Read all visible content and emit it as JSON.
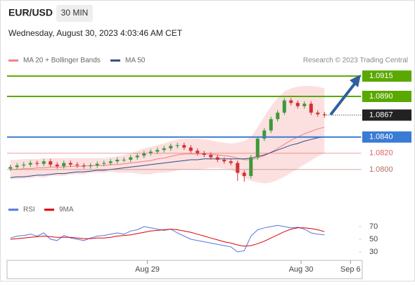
{
  "header": {
    "symbol": "EUR/USD",
    "timeframe": "30 MIN",
    "datetime": "Wednesday, August 30, 2023 4:03:46 AM CET"
  },
  "chart_data": [
    {
      "type": "candlestick",
      "source": "Research © 2023 Trading Central",
      "xlim": [
        -0.5,
        52.5
      ],
      "ylim": [
        1.0773,
        1.0929
      ],
      "up_color": "#3a9a3a",
      "down_color": "#d03030",
      "open": [
        1.0801,
        1.0803,
        1.0805,
        1.0806,
        1.0808,
        1.0807,
        1.081,
        1.0806,
        1.0804,
        1.0808,
        1.0806,
        1.0805,
        1.0804,
        1.0805,
        1.0807,
        1.0808,
        1.081,
        1.0812,
        1.0812,
        1.0815,
        1.0817,
        1.082,
        1.0822,
        1.0824,
        1.0826,
        1.0829,
        1.083,
        1.0827,
        1.0823,
        1.082,
        1.0818,
        1.0815,
        1.0812,
        1.081,
        1.0808,
        1.0796,
        1.0792,
        1.0815,
        1.0838,
        1.0848,
        1.0862,
        1.087,
        1.0885,
        1.0882,
        1.0878,
        1.0881,
        1.087,
        1.0868
      ],
      "high": [
        1.0806,
        1.0808,
        1.0809,
        1.0811,
        1.0811,
        1.0813,
        1.0813,
        1.0809,
        1.0811,
        1.0811,
        1.0809,
        1.0808,
        1.0808,
        1.081,
        1.0811,
        1.0813,
        1.0815,
        1.0815,
        1.0818,
        1.082,
        1.0823,
        1.0825,
        1.0827,
        1.0829,
        1.0832,
        1.0833,
        1.0833,
        1.083,
        1.0826,
        1.0823,
        1.0821,
        1.0818,
        1.0815,
        1.0813,
        1.0811,
        1.0799,
        1.0818,
        1.0841,
        1.0851,
        1.0865,
        1.0873,
        1.0888,
        1.0888,
        1.0885,
        1.0884,
        1.0884,
        1.0873,
        1.0871
      ],
      "low": [
        1.0798,
        1.08,
        1.0802,
        1.0803,
        1.0804,
        1.0804,
        1.0803,
        1.0801,
        1.0801,
        1.0803,
        1.0802,
        1.0801,
        1.0801,
        1.0802,
        1.0804,
        1.0805,
        1.0807,
        1.0809,
        1.0809,
        1.0812,
        1.0814,
        1.0817,
        1.0819,
        1.0821,
        1.0823,
        1.0826,
        1.0824,
        1.082,
        1.0817,
        1.0815,
        1.0812,
        1.0809,
        1.0807,
        1.0805,
        1.0786,
        1.0785,
        1.0789,
        1.0812,
        1.0835,
        1.0845,
        1.0859,
        1.0867,
        1.0879,
        1.0875,
        1.0875,
        1.0867,
        1.0865,
        1.0864
      ],
      "close": [
        1.0803,
        1.0805,
        1.0806,
        1.0808,
        1.0807,
        1.081,
        1.0806,
        1.0804,
        1.0808,
        1.0806,
        1.0805,
        1.0804,
        1.0805,
        1.0807,
        1.0808,
        1.081,
        1.0812,
        1.0812,
        1.0815,
        1.0817,
        1.082,
        1.0822,
        1.0824,
        1.0826,
        1.0829,
        1.083,
        1.0827,
        1.0823,
        1.082,
        1.0818,
        1.0815,
        1.0812,
        1.081,
        1.0808,
        1.0796,
        1.0792,
        1.0815,
        1.0838,
        1.0848,
        1.0862,
        1.087,
        1.0885,
        1.0882,
        1.0878,
        1.0881,
        1.087,
        1.0868,
        1.0867
      ],
      "series": [
        {
          "name": "MA 20 + Bollinger Bands",
          "color": "#f08080",
          "band_color": "#fbd3d3",
          "values": [
            1.08,
            1.08,
            1.0801,
            1.0801,
            1.0802,
            1.0802,
            1.0803,
            1.0803,
            1.0803,
            1.0804,
            1.0804,
            1.0804,
            1.0805,
            1.0805,
            1.0805,
            1.0806,
            1.0806,
            1.0807,
            1.0808,
            1.0809,
            1.081,
            1.0811,
            1.0813,
            1.0814,
            1.0816,
            1.0818,
            1.0819,
            1.0819,
            1.0819,
            1.0819,
            1.0819,
            1.0818,
            1.0817,
            1.0816,
            1.0814,
            1.0812,
            1.0812,
            1.0814,
            1.0817,
            1.0821,
            1.0826,
            1.0831,
            1.0836,
            1.084,
            1.0844,
            1.0847,
            1.085,
            1.0852
          ],
          "upper": [
            1.0812,
            1.0812,
            1.0813,
            1.0813,
            1.0813,
            1.0814,
            1.0814,
            1.0814,
            1.0814,
            1.0814,
            1.0814,
            1.0814,
            1.0814,
            1.0814,
            1.0814,
            1.0815,
            1.0816,
            1.0818,
            1.082,
            1.0823,
            1.0826,
            1.0828,
            1.083,
            1.0832,
            1.0835,
            1.0837,
            1.0838,
            1.0838,
            1.0838,
            1.0837,
            1.0836,
            1.0834,
            1.0833,
            1.0832,
            1.0833,
            1.0835,
            1.084,
            1.0852,
            1.0865,
            1.0878,
            1.0888,
            1.0896,
            1.09,
            1.0902,
            1.0903,
            1.0903,
            1.0902,
            1.09
          ],
          "lower": [
            1.0788,
            1.0788,
            1.0789,
            1.0789,
            1.0791,
            1.079,
            1.0792,
            1.0792,
            1.0792,
            1.0794,
            1.0794,
            1.0794,
            1.0796,
            1.0796,
            1.0796,
            1.0797,
            1.0796,
            1.0796,
            1.0796,
            1.0795,
            1.0794,
            1.0794,
            1.0796,
            1.0796,
            1.0797,
            1.0799,
            1.08,
            1.08,
            1.08,
            1.0801,
            1.0802,
            1.0802,
            1.0801,
            1.08,
            1.0795,
            1.079,
            1.0786,
            1.0784,
            1.0783,
            1.0784,
            1.0787,
            1.0791,
            1.0796,
            1.0801,
            1.0806,
            1.0811,
            1.0816,
            1.082
          ]
        },
        {
          "name": "MA 50",
          "color": "#2a4a8a",
          "values": [
            1.079,
            1.0791,
            1.0791,
            1.0792,
            1.0793,
            1.0793,
            1.0794,
            1.0795,
            1.0795,
            1.0796,
            1.0797,
            1.0797,
            1.0798,
            1.0799,
            1.0799,
            1.08,
            1.0801,
            1.0802,
            1.0803,
            1.0804,
            1.0805,
            1.0806,
            1.0807,
            1.0808,
            1.0809,
            1.081,
            1.0811,
            1.0812,
            1.0812,
            1.0813,
            1.0813,
            1.0813,
            1.0813,
            1.0813,
            1.0813,
            1.0813,
            1.0814,
            1.0816,
            1.0818,
            1.0821,
            1.0824,
            1.0827,
            1.083,
            1.0832,
            1.0835,
            1.0837,
            1.0839,
            1.084
          ]
        }
      ],
      "levels": [
        {
          "value": 1.0915,
          "label": "1.0915",
          "color": "#5aa800",
          "style": "box"
        },
        {
          "value": 1.089,
          "label": "1.0890",
          "color": "#5aa800",
          "style": "box"
        },
        {
          "value": 1.0867,
          "label": "1.0867",
          "color": "#222222",
          "style": "current"
        },
        {
          "value": 1.084,
          "label": "1.0840",
          "color": "#3a7bd5",
          "style": "box"
        },
        {
          "value": 1.082,
          "label": "1.0820",
          "color": "#e06060",
          "style": "text"
        },
        {
          "value": 1.08,
          "label": "1.0800",
          "color": "#b07060",
          "style": "text"
        }
      ]
    },
    {
      "type": "line",
      "xlim": [
        -0.5,
        52.5
      ],
      "ylim": [
        20,
        80
      ],
      "yticks": [
        70,
        50,
        30
      ],
      "xticks": [
        {
          "value": 20.5,
          "label": "Aug 29"
        },
        {
          "value": 43.5,
          "label": "Aug 30"
        },
        {
          "value": 50.9,
          "label": "Sep 6"
        }
      ],
      "series": [
        {
          "name": "RSI",
          "color": "#5577dd",
          "values": [
            52,
            55,
            56,
            58,
            55,
            60,
            50,
            48,
            56,
            52,
            50,
            48,
            52,
            55,
            56,
            58,
            60,
            58,
            63,
            65,
            70,
            68,
            66,
            64,
            66,
            60,
            55,
            50,
            48,
            46,
            44,
            42,
            40,
            38,
            30,
            32,
            55,
            65,
            68,
            70,
            72,
            70,
            68,
            69,
            66,
            60,
            58,
            57
          ]
        },
        {
          "name": "9MA",
          "color": "#dd0000",
          "values": [
            50,
            51,
            52,
            53,
            54,
            55,
            54,
            53,
            53,
            53,
            52,
            51,
            51,
            52,
            52,
            53,
            55,
            56,
            57,
            59,
            61,
            63,
            64,
            65,
            66,
            65,
            63,
            61,
            58,
            55,
            52,
            49,
            46,
            44,
            41,
            39,
            40,
            43,
            47,
            52,
            57,
            62,
            66,
            68,
            68,
            67,
            65,
            62
          ]
        }
      ]
    }
  ]
}
